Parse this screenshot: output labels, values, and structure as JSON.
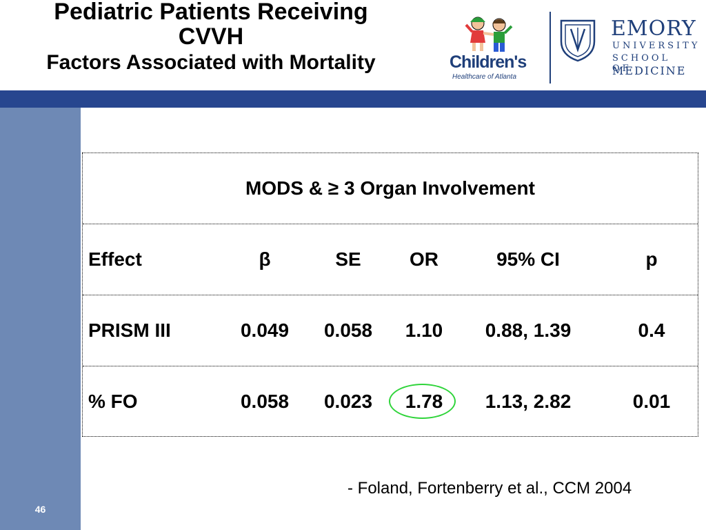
{
  "title": {
    "line1": "Pediatric Patients Receiving",
    "line2": "CVVH",
    "subtitle": "Factors Associated with Mortality"
  },
  "logos": {
    "childrens_name": "Children's",
    "childrens_sub": "Healthcare of Atlanta",
    "emory_name": "EMORY",
    "emory_line1": "UNIVERSITY",
    "emory_line2": "SCHOOL OF",
    "emory_line3": "MEDICINE"
  },
  "table": {
    "caption": "MODS & ≥ 3 Organ Involvement",
    "headers": [
      "Effect",
      "β",
      "SE",
      "OR",
      "95% CI",
      "p"
    ],
    "rows": [
      {
        "effect": "PRISM III",
        "beta": "0.049",
        "se": "0.058",
        "or": "1.10",
        "ci": "0.88, 1.39",
        "p": "0.4"
      },
      {
        "effect": "% FO",
        "beta": "0.058",
        "se": "0.023",
        "or": "1.78",
        "ci": "1.13, 2.82",
        "p": "0.01"
      }
    ],
    "highlight_color": "#2fd43a"
  },
  "citation": "- Foland, Fortenberry et al., CCM 2004",
  "slide_number": "46",
  "colors": {
    "header_bar": "#27468f",
    "sidebar": "#6e89b5",
    "brand_blue": "#1f3f7a"
  }
}
